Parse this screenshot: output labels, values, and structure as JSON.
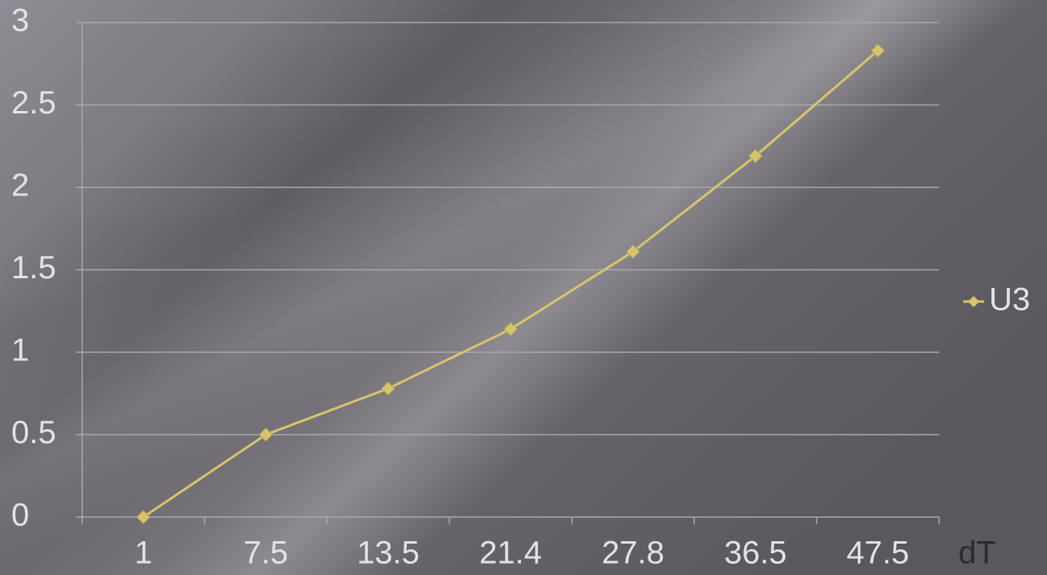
{
  "chart_data": {
    "type": "line",
    "x_label": "dT",
    "categories": [
      "1",
      "7.5",
      "13.5",
      "21.4",
      "27.8",
      "36.5",
      "47.5"
    ],
    "series": [
      {
        "name": "U3",
        "color": "#d6c56c",
        "values": [
          0,
          0.5,
          0.78,
          1.14,
          1.61,
          2.19,
          2.83
        ]
      }
    ],
    "ylim": [
      0,
      3
    ],
    "yticks": [
      0,
      0.5,
      1,
      1.5,
      2,
      2.5,
      3
    ],
    "grid": true,
    "legend": "right"
  }
}
